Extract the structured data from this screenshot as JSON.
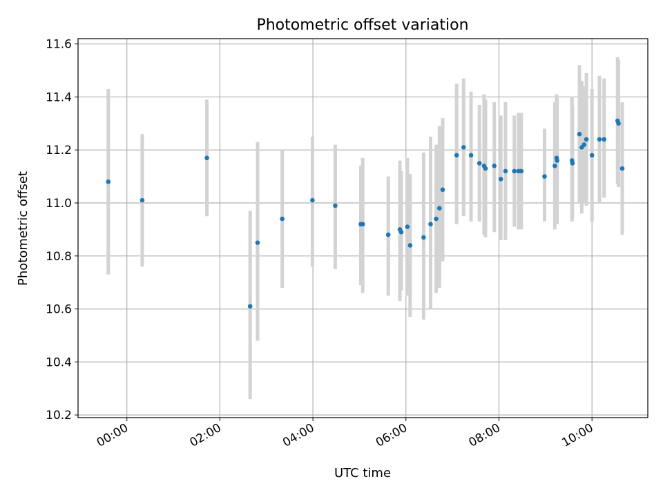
{
  "chart_data": {
    "type": "scatter",
    "title": "Photometric offset variation",
    "xlabel": "UTC time",
    "ylabel": "Photometric offset",
    "x_unit": "hours UTC",
    "xlim": [
      -1.05,
      11.2
    ],
    "ylim": [
      10.19,
      11.62
    ],
    "x_ticks": [
      {
        "value": 0,
        "label": "00:00"
      },
      {
        "value": 2,
        "label": "02:00"
      },
      {
        "value": 4,
        "label": "04:00"
      },
      {
        "value": 6,
        "label": "06:00"
      },
      {
        "value": 8,
        "label": "08:00"
      },
      {
        "value": 10,
        "label": "10:00"
      }
    ],
    "y_ticks": [
      {
        "value": 10.2,
        "label": "10.2"
      },
      {
        "value": 10.4,
        "label": "10.4"
      },
      {
        "value": 10.6,
        "label": "10.6"
      },
      {
        "value": 10.8,
        "label": "10.8"
      },
      {
        "value": 11.0,
        "label": "11.0"
      },
      {
        "value": 11.2,
        "label": "11.2"
      },
      {
        "value": 11.4,
        "label": "11.4"
      },
      {
        "value": 11.6,
        "label": "11.6"
      }
    ],
    "grid": true,
    "colors": {
      "points": "#1f77b4",
      "error_bars": "#d3d3d3"
    },
    "points": [
      {
        "x": -0.4,
        "y": 11.08,
        "ylo": 10.73,
        "yhi": 11.43
      },
      {
        "x": 0.33,
        "y": 11.01,
        "ylo": 10.76,
        "yhi": 11.26
      },
      {
        "x": 1.72,
        "y": 11.17,
        "ylo": 10.95,
        "yhi": 11.39
      },
      {
        "x": 2.65,
        "y": 10.61,
        "ylo": 10.26,
        "yhi": 10.97
      },
      {
        "x": 2.81,
        "y": 10.85,
        "ylo": 10.48,
        "yhi": 11.23
      },
      {
        "x": 3.34,
        "y": 10.94,
        "ylo": 10.68,
        "yhi": 11.2
      },
      {
        "x": 3.99,
        "y": 11.01,
        "ylo": 10.76,
        "yhi": 11.25
      },
      {
        "x": 4.48,
        "y": 10.99,
        "ylo": 10.75,
        "yhi": 11.22
      },
      {
        "x": 5.03,
        "y": 10.92,
        "ylo": 10.69,
        "yhi": 11.14
      },
      {
        "x": 5.07,
        "y": 10.92,
        "ylo": 10.66,
        "yhi": 11.17
      },
      {
        "x": 5.62,
        "y": 10.88,
        "ylo": 10.65,
        "yhi": 11.1
      },
      {
        "x": 5.87,
        "y": 10.9,
        "ylo": 10.63,
        "yhi": 11.16
      },
      {
        "x": 5.9,
        "y": 10.89,
        "ylo": 10.67,
        "yhi": 11.12
      },
      {
        "x": 6.03,
        "y": 10.91,
        "ylo": 10.65,
        "yhi": 11.17
      },
      {
        "x": 6.09,
        "y": 10.84,
        "ylo": 10.57,
        "yhi": 11.11
      },
      {
        "x": 6.38,
        "y": 10.87,
        "ylo": 10.56,
        "yhi": 11.19
      },
      {
        "x": 6.53,
        "y": 10.92,
        "ylo": 10.6,
        "yhi": 11.25
      },
      {
        "x": 6.65,
        "y": 10.94,
        "ylo": 10.66,
        "yhi": 11.22
      },
      {
        "x": 6.72,
        "y": 10.98,
        "ylo": 10.68,
        "yhi": 11.29
      },
      {
        "x": 6.79,
        "y": 11.05,
        "ylo": 10.78,
        "yhi": 11.32
      },
      {
        "x": 7.09,
        "y": 11.18,
        "ylo": 10.92,
        "yhi": 11.45
      },
      {
        "x": 7.24,
        "y": 11.21,
        "ylo": 10.95,
        "yhi": 11.47
      },
      {
        "x": 7.4,
        "y": 11.18,
        "ylo": 10.93,
        "yhi": 11.42
      },
      {
        "x": 7.58,
        "y": 11.15,
        "ylo": 10.93,
        "yhi": 11.37
      },
      {
        "x": 7.68,
        "y": 11.14,
        "ylo": 10.88,
        "yhi": 11.41
      },
      {
        "x": 7.71,
        "y": 11.13,
        "ylo": 10.87,
        "yhi": 11.39
      },
      {
        "x": 7.9,
        "y": 11.14,
        "ylo": 10.89,
        "yhi": 11.38
      },
      {
        "x": 8.04,
        "y": 11.09,
        "ylo": 10.86,
        "yhi": 11.33
      },
      {
        "x": 8.14,
        "y": 11.12,
        "ylo": 10.86,
        "yhi": 11.38
      },
      {
        "x": 8.33,
        "y": 11.12,
        "ylo": 10.91,
        "yhi": 11.33
      },
      {
        "x": 8.42,
        "y": 11.12,
        "ylo": 10.9,
        "yhi": 11.34
      },
      {
        "x": 8.48,
        "y": 11.12,
        "ylo": 10.9,
        "yhi": 11.34
      },
      {
        "x": 8.98,
        "y": 11.1,
        "ylo": 10.93,
        "yhi": 11.28
      },
      {
        "x": 9.2,
        "y": 11.14,
        "ylo": 10.9,
        "yhi": 11.38
      },
      {
        "x": 9.24,
        "y": 11.17,
        "ylo": 10.94,
        "yhi": 11.41
      },
      {
        "x": 9.25,
        "y": 11.16,
        "ylo": 10.92,
        "yhi": 11.4
      },
      {
        "x": 9.57,
        "y": 11.16,
        "ylo": 10.93,
        "yhi": 11.4
      },
      {
        "x": 9.58,
        "y": 11.15,
        "ylo": 10.94,
        "yhi": 11.37
      },
      {
        "x": 9.73,
        "y": 11.26,
        "ylo": 11.0,
        "yhi": 11.52
      },
      {
        "x": 9.78,
        "y": 11.21,
        "ylo": 10.96,
        "yhi": 11.46
      },
      {
        "x": 9.83,
        "y": 11.22,
        "ylo": 11.0,
        "yhi": 11.44
      },
      {
        "x": 9.88,
        "y": 11.24,
        "ylo": 10.99,
        "yhi": 11.49
      },
      {
        "x": 10.0,
        "y": 11.18,
        "ylo": 10.93,
        "yhi": 11.43
      },
      {
        "x": 10.16,
        "y": 11.24,
        "ylo": 11.0,
        "yhi": 11.48
      },
      {
        "x": 10.26,
        "y": 11.24,
        "ylo": 11.02,
        "yhi": 11.47
      },
      {
        "x": 10.55,
        "y": 11.31,
        "ylo": 11.07,
        "yhi": 11.55
      },
      {
        "x": 10.57,
        "y": 11.3,
        "ylo": 11.06,
        "yhi": 11.54
      },
      {
        "x": 10.65,
        "y": 11.13,
        "ylo": 10.88,
        "yhi": 11.38
      }
    ]
  }
}
